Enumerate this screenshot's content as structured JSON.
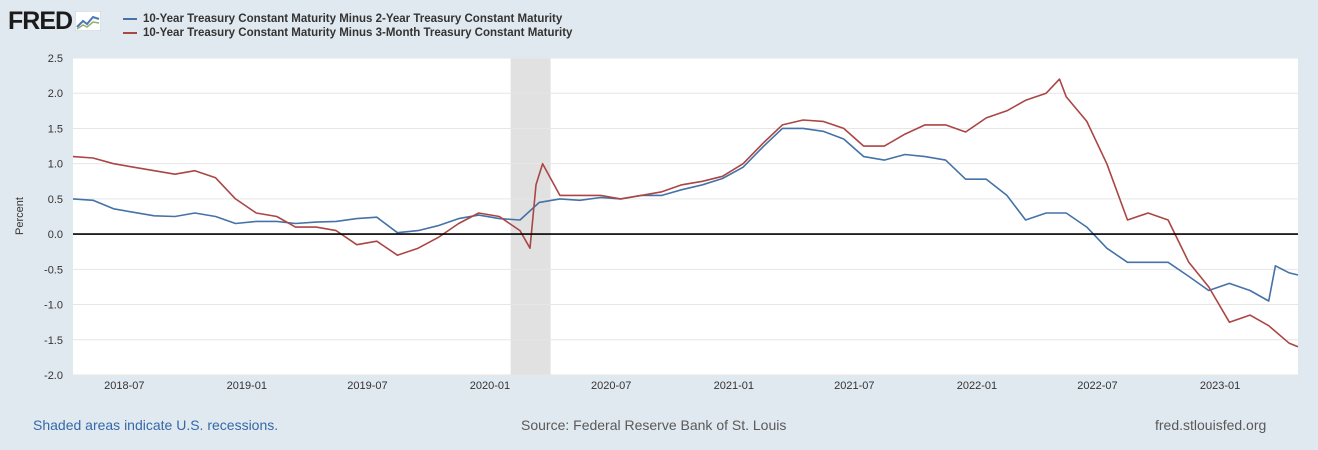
{
  "header": {
    "logo_text": "FRED",
    "logo_icon": "line-chart-icon"
  },
  "footer": {
    "recession_note": "Shaded areas indicate U.S. recessions.",
    "source": "Source: Federal Reserve Bank of St. Louis",
    "site": "fred.stlouisfed.org"
  },
  "colors": {
    "background": "#e1e9f0",
    "plot_background": "#ffffff",
    "series_blue": "#4572a7",
    "series_red": "#aa4643",
    "recession_shade": "#e1e1e1",
    "zero_line": "#000000",
    "link": "#3468a8"
  },
  "chart_data": {
    "type": "line",
    "title": "",
    "xlabel": "",
    "ylabel": "Percent",
    "xlim": [
      "2018-04-15",
      "2023-04-28"
    ],
    "ylim": [
      -2.0,
      2.5
    ],
    "y_ticks": [
      -2.0,
      -1.5,
      -1.0,
      -0.5,
      0.0,
      0.5,
      1.0,
      1.5,
      2.0,
      2.5
    ],
    "y_tick_labels": [
      "-2.0",
      "-1.5",
      "-1.0",
      "-0.5",
      "0.0",
      "0.5",
      "1.0",
      "1.5",
      "2.0",
      "2.5"
    ],
    "x_ticks": [
      "2018-07-01",
      "2019-01-01",
      "2019-07-01",
      "2020-01-01",
      "2020-07-01",
      "2021-01-01",
      "2021-07-01",
      "2022-01-01",
      "2022-07-01",
      "2023-01-01"
    ],
    "x_tick_labels": [
      "2018-07",
      "2019-01",
      "2019-07",
      "2020-01",
      "2020-07",
      "2021-01",
      "2021-07",
      "2022-01",
      "2022-07",
      "2023-01"
    ],
    "grid": "horizontal",
    "legend_position": "top",
    "zero_line": true,
    "recessions": [
      [
        "2020-02-01",
        "2020-04-01"
      ]
    ],
    "series": [
      {
        "name": "10-Year Treasury Constant Maturity Minus 2-Year Treasury Constant Maturity",
        "color": "#4572a7",
        "points": [
          [
            "2018-04-15",
            0.5
          ],
          [
            "2018-05-15",
            0.48
          ],
          [
            "2018-06-15",
            0.36
          ],
          [
            "2018-07-15",
            0.31
          ],
          [
            "2018-08-15",
            0.26
          ],
          [
            "2018-09-15",
            0.25
          ],
          [
            "2018-10-15",
            0.3
          ],
          [
            "2018-11-15",
            0.25
          ],
          [
            "2018-12-15",
            0.15
          ],
          [
            "2019-01-15",
            0.18
          ],
          [
            "2019-02-15",
            0.18
          ],
          [
            "2019-03-15",
            0.15
          ],
          [
            "2019-04-15",
            0.17
          ],
          [
            "2019-05-15",
            0.18
          ],
          [
            "2019-06-15",
            0.22
          ],
          [
            "2019-07-15",
            0.24
          ],
          [
            "2019-08-15",
            0.02
          ],
          [
            "2019-09-15",
            0.05
          ],
          [
            "2019-10-15",
            0.12
          ],
          [
            "2019-11-15",
            0.22
          ],
          [
            "2019-12-15",
            0.27
          ],
          [
            "2020-01-15",
            0.22
          ],
          [
            "2020-02-15",
            0.2
          ],
          [
            "2020-03-15",
            0.45
          ],
          [
            "2020-04-15",
            0.5
          ],
          [
            "2020-05-15",
            0.48
          ],
          [
            "2020-06-15",
            0.52
          ],
          [
            "2020-07-15",
            0.5
          ],
          [
            "2020-08-15",
            0.55
          ],
          [
            "2020-09-15",
            0.55
          ],
          [
            "2020-10-15",
            0.63
          ],
          [
            "2020-11-15",
            0.7
          ],
          [
            "2020-12-15",
            0.79
          ],
          [
            "2021-01-15",
            0.95
          ],
          [
            "2021-02-15",
            1.25
          ],
          [
            "2021-03-15",
            1.5
          ],
          [
            "2021-04-15",
            1.5
          ],
          [
            "2021-05-15",
            1.46
          ],
          [
            "2021-06-15",
            1.35
          ],
          [
            "2021-07-15",
            1.1
          ],
          [
            "2021-08-15",
            1.05
          ],
          [
            "2021-09-15",
            1.13
          ],
          [
            "2021-10-15",
            1.1
          ],
          [
            "2021-11-15",
            1.05
          ],
          [
            "2021-12-15",
            0.78
          ],
          [
            "2022-01-15",
            0.78
          ],
          [
            "2022-02-15",
            0.55
          ],
          [
            "2022-03-15",
            0.2
          ],
          [
            "2022-04-15",
            0.3
          ],
          [
            "2022-05-15",
            0.3
          ],
          [
            "2022-06-15",
            0.1
          ],
          [
            "2022-07-15",
            -0.2
          ],
          [
            "2022-08-15",
            -0.4
          ],
          [
            "2022-09-15",
            -0.4
          ],
          [
            "2022-10-15",
            -0.4
          ],
          [
            "2022-11-15",
            -0.6
          ],
          [
            "2022-12-15",
            -0.8
          ],
          [
            "2023-01-15",
            -0.7
          ],
          [
            "2023-02-15",
            -0.8
          ],
          [
            "2023-03-15",
            -0.95
          ],
          [
            "2023-03-25",
            -0.45
          ],
          [
            "2023-04-15",
            -0.55
          ],
          [
            "2023-04-28",
            -0.58
          ]
        ]
      },
      {
        "name": "10-Year Treasury Constant Maturity Minus 3-Month Treasury Constant Maturity",
        "color": "#aa4643",
        "points": [
          [
            "2018-04-15",
            1.1
          ],
          [
            "2018-05-15",
            1.08
          ],
          [
            "2018-06-15",
            1.0
          ],
          [
            "2018-07-15",
            0.95
          ],
          [
            "2018-08-15",
            0.9
          ],
          [
            "2018-09-15",
            0.85
          ],
          [
            "2018-10-15",
            0.9
          ],
          [
            "2018-11-15",
            0.8
          ],
          [
            "2018-12-15",
            0.5
          ],
          [
            "2019-01-15",
            0.3
          ],
          [
            "2019-02-15",
            0.25
          ],
          [
            "2019-03-15",
            0.1
          ],
          [
            "2019-04-15",
            0.1
          ],
          [
            "2019-05-15",
            0.05
          ],
          [
            "2019-06-15",
            -0.15
          ],
          [
            "2019-07-15",
            -0.1
          ],
          [
            "2019-08-15",
            -0.3
          ],
          [
            "2019-09-15",
            -0.2
          ],
          [
            "2019-10-15",
            -0.05
          ],
          [
            "2019-11-15",
            0.15
          ],
          [
            "2019-12-15",
            0.3
          ],
          [
            "2020-01-15",
            0.25
          ],
          [
            "2020-02-15",
            0.05
          ],
          [
            "2020-03-01",
            -0.2
          ],
          [
            "2020-03-10",
            0.7
          ],
          [
            "2020-03-20",
            1.0
          ],
          [
            "2020-04-15",
            0.55
          ],
          [
            "2020-05-15",
            0.55
          ],
          [
            "2020-06-15",
            0.55
          ],
          [
            "2020-07-15",
            0.5
          ],
          [
            "2020-08-15",
            0.55
          ],
          [
            "2020-09-15",
            0.6
          ],
          [
            "2020-10-15",
            0.7
          ],
          [
            "2020-11-15",
            0.75
          ],
          [
            "2020-12-15",
            0.82
          ],
          [
            "2021-01-15",
            1.0
          ],
          [
            "2021-02-15",
            1.3
          ],
          [
            "2021-03-15",
            1.55
          ],
          [
            "2021-04-15",
            1.62
          ],
          [
            "2021-05-15",
            1.6
          ],
          [
            "2021-06-15",
            1.5
          ],
          [
            "2021-07-15",
            1.25
          ],
          [
            "2021-08-15",
            1.25
          ],
          [
            "2021-09-15",
            1.42
          ],
          [
            "2021-10-15",
            1.55
          ],
          [
            "2021-11-15",
            1.55
          ],
          [
            "2021-12-15",
            1.45
          ],
          [
            "2022-01-15",
            1.65
          ],
          [
            "2022-02-15",
            1.75
          ],
          [
            "2022-03-15",
            1.9
          ],
          [
            "2022-04-15",
            2.0
          ],
          [
            "2022-05-05",
            2.2
          ],
          [
            "2022-05-15",
            1.95
          ],
          [
            "2022-06-15",
            1.6
          ],
          [
            "2022-07-15",
            1.0
          ],
          [
            "2022-08-15",
            0.2
          ],
          [
            "2022-09-15",
            0.3
          ],
          [
            "2022-10-15",
            0.2
          ],
          [
            "2022-11-15",
            -0.4
          ],
          [
            "2022-12-15",
            -0.75
          ],
          [
            "2023-01-15",
            -1.25
          ],
          [
            "2023-02-15",
            -1.15
          ],
          [
            "2023-03-15",
            -1.3
          ],
          [
            "2023-04-15",
            -1.55
          ],
          [
            "2023-04-28",
            -1.6
          ]
        ]
      }
    ]
  }
}
